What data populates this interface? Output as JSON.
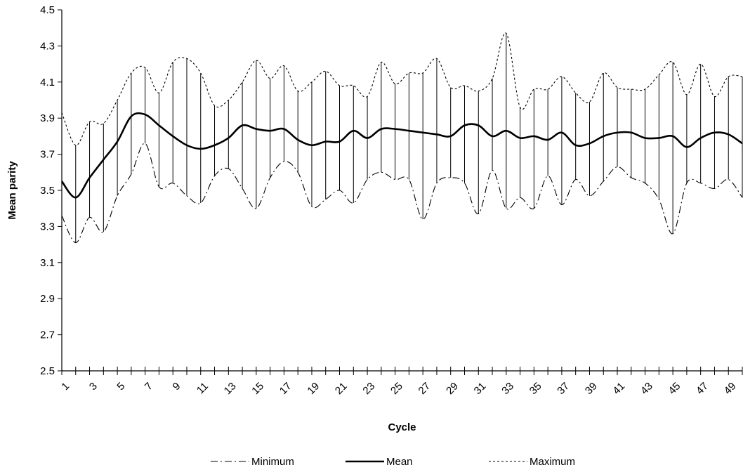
{
  "chart_data": {
    "type": "line",
    "title": "",
    "xlabel": "Cycle",
    "ylabel": "Mean parity",
    "x": [
      1,
      2,
      3,
      4,
      5,
      6,
      7,
      8,
      9,
      10,
      11,
      12,
      13,
      14,
      15,
      16,
      17,
      18,
      19,
      20,
      21,
      22,
      23,
      24,
      25,
      26,
      27,
      28,
      29,
      30,
      31,
      32,
      33,
      34,
      35,
      36,
      37,
      38,
      39,
      40,
      41,
      42,
      43,
      44,
      45,
      46,
      47,
      48,
      49,
      50
    ],
    "x_tick_labels": [
      "1",
      "3",
      "5",
      "7",
      "9",
      "11",
      "13",
      "15",
      "17",
      "19",
      "21",
      "23",
      "25",
      "27",
      "29",
      "31",
      "33",
      "35",
      "37",
      "39",
      "41",
      "43",
      "45",
      "47",
      "49"
    ],
    "ylim": [
      2.5,
      4.5
    ],
    "y_ticks": [
      2.5,
      2.7,
      2.9,
      3.1,
      3.3,
      3.5,
      3.7,
      3.9,
      4.1,
      4.3,
      4.5
    ],
    "y_tick_labels": [
      "2.5",
      "2.7",
      "2.9",
      "3.1",
      "3.3",
      "3.5",
      "3.7",
      "3.9",
      "4.1",
      "4.3",
      "4.5"
    ],
    "grid": false,
    "legend_position": "bottom",
    "range_bars": true,
    "series": [
      {
        "name": "Minimum",
        "style": "dash-dot",
        "color": "#000000",
        "values": [
          3.36,
          3.21,
          3.35,
          3.27,
          3.47,
          3.59,
          3.76,
          3.52,
          3.54,
          3.47,
          3.43,
          3.58,
          3.62,
          3.51,
          3.4,
          3.57,
          3.66,
          3.6,
          3.41,
          3.45,
          3.5,
          3.43,
          3.56,
          3.6,
          3.56,
          3.56,
          3.34,
          3.54,
          3.57,
          3.54,
          3.37,
          3.61,
          3.4,
          3.46,
          3.4,
          3.58,
          3.42,
          3.56,
          3.47,
          3.55,
          3.63,
          3.57,
          3.54,
          3.45,
          3.26,
          3.54,
          3.54,
          3.51,
          3.56,
          3.46
        ]
      },
      {
        "name": "Mean",
        "style": "solid",
        "color": "#000000",
        "values": [
          3.55,
          3.46,
          3.57,
          3.67,
          3.77,
          3.91,
          3.92,
          3.86,
          3.8,
          3.75,
          3.73,
          3.75,
          3.79,
          3.86,
          3.84,
          3.83,
          3.84,
          3.78,
          3.75,
          3.77,
          3.77,
          3.83,
          3.79,
          3.84,
          3.84,
          3.83,
          3.82,
          3.81,
          3.8,
          3.86,
          3.86,
          3.8,
          3.83,
          3.79,
          3.8,
          3.78,
          3.82,
          3.75,
          3.76,
          3.8,
          3.82,
          3.82,
          3.79,
          3.79,
          3.8,
          3.74,
          3.79,
          3.82,
          3.81,
          3.76
        ]
      },
      {
        "name": "Maximum",
        "style": "dotted",
        "color": "#000000",
        "values": [
          3.93,
          3.75,
          3.88,
          3.87,
          4.0,
          4.15,
          4.18,
          4.04,
          4.21,
          4.23,
          4.15,
          3.97,
          4.0,
          4.1,
          4.22,
          4.12,
          4.19,
          4.05,
          4.1,
          4.16,
          4.08,
          4.08,
          4.02,
          4.21,
          4.09,
          4.15,
          4.15,
          4.23,
          4.07,
          4.08,
          4.05,
          4.12,
          4.37,
          3.96,
          4.06,
          4.06,
          4.13,
          4.04,
          3.99,
          4.15,
          4.07,
          4.06,
          4.06,
          4.14,
          4.21,
          4.03,
          4.2,
          4.02,
          4.13,
          4.13
        ]
      }
    ]
  }
}
